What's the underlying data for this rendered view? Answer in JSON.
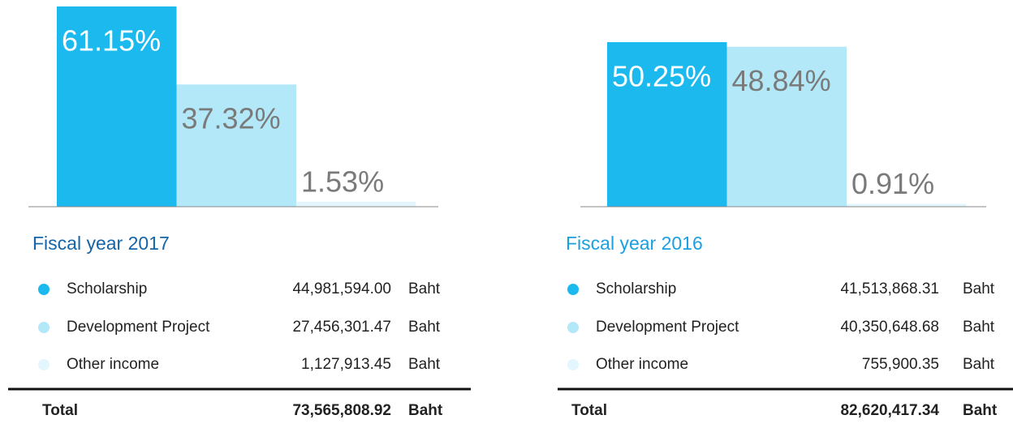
{
  "chart_data": [
    {
      "type": "bar",
      "title": "Fiscal year 2017",
      "title_color": "#1565a8",
      "categories": [
        "Scholarship",
        "Development Project",
        "Other income"
      ],
      "values": [
        61.15,
        37.32,
        1.53
      ],
      "value_labels": [
        "61.15%",
        "37.32%",
        "1.53%"
      ],
      "colors": [
        "#1cb9ef",
        "#b3e8f9",
        "#e3f6fd"
      ],
      "amounts": [
        "44,981,594.00",
        "27,456,301.47",
        "1,127,913.45"
      ],
      "unit": "Baht",
      "total_label": "Total",
      "total": "73,565,808.92"
    },
    {
      "type": "bar",
      "title": "Fiscal year 2016",
      "title_color": "#1aa0e0",
      "categories": [
        "Scholarship",
        "Development Project",
        "Other income"
      ],
      "values": [
        50.25,
        48.84,
        0.91
      ],
      "value_labels": [
        "50.25%",
        "48.84%",
        "0.91%"
      ],
      "colors": [
        "#1cb9ef",
        "#b3e8f9",
        "#e3f6fd"
      ],
      "amounts": [
        "41,513,868.31",
        "40,350,648.68",
        "755,900.35"
      ],
      "unit": "Baht",
      "total_label": "Total",
      "total": "82,620,417.34"
    }
  ]
}
